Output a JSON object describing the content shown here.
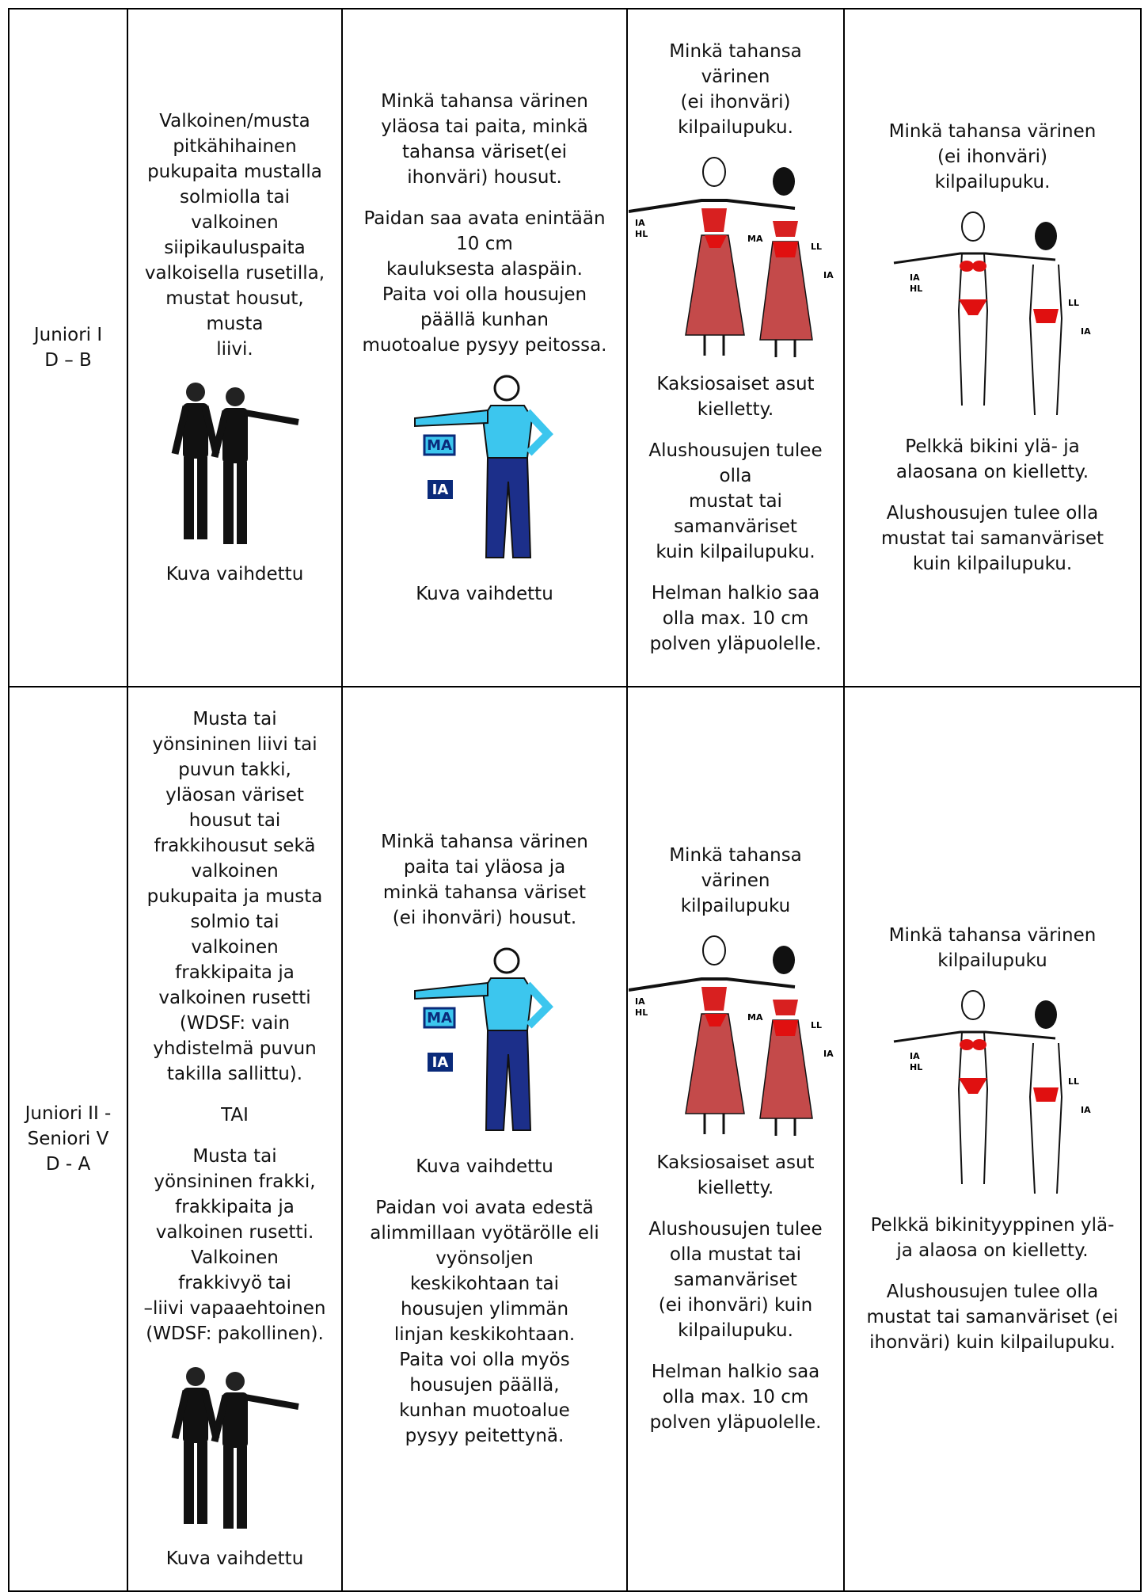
{
  "table": {
    "rows": [
      {
        "cells": [
          {
            "lines": [
              "Juniori I",
              "D – B"
            ]
          },
          {
            "top": [
              [
                "Valkoinen/musta",
                "pitkähihainen",
                "pukupaita mustalla",
                "solmiolla tai",
                "valkoinen",
                "siipikauluspaita",
                "valkoisella rusetilla,",
                "mustat housut,",
                "musta",
                "liivi."
              ]
            ],
            "caption": "Kuva vaihdettu",
            "bottom": []
          },
          {
            "top": [
              [
                "Minkä tahansa värinen",
                "yläosa tai paita, minkä",
                "tahansa väriset(ei",
                "ihonväri) housut."
              ],
              [
                "Paidan saa avata enintään",
                "10 cm",
                "kauluksesta alaspäin.",
                "Paita voi olla housujen",
                "päällä kunhan",
                "muotoalue pysyy peitossa."
              ]
            ],
            "figure_labels": [
              "MA",
              "IA"
            ],
            "caption": "Kuva vaihdettu",
            "bottom": []
          },
          {
            "top": [
              [
                "Minkä tahansa",
                "värinen",
                "(ei ihonväri)",
                "kilpailupuku."
              ]
            ],
            "figure_labels": [
              "IA",
              "HL",
              "MA",
              "LL",
              "IA"
            ],
            "bottom": [
              [
                "Kaksiosaiset asut",
                "kielletty."
              ],
              [
                "Alushousujen tulee",
                "olla",
                "mustat tai",
                "samanväriset",
                "kuin kilpailupuku."
              ],
              [
                "Helman halkio saa",
                "olla max. 10 cm",
                "polven yläpuolelle."
              ]
            ]
          },
          {
            "top": [
              [
                "Minkä tahansa värinen",
                "(ei ihonväri)",
                "kilpailupuku."
              ]
            ],
            "figure_labels": [
              "IA",
              "HL",
              "LL",
              "IA"
            ],
            "bottom": [
              [
                "Pelkkä bikini ylä- ja",
                "alaosana on kielletty."
              ],
              [
                "Alushousujen tulee olla",
                "mustat tai samanväriset",
                "kuin kilpailupuku."
              ]
            ]
          }
        ]
      },
      {
        "cells": [
          {
            "lines": [
              "Juniori II -",
              "Seniori V",
              "D - A"
            ]
          },
          {
            "top": [
              [
                "Musta tai",
                "yönsininen liivi tai",
                "puvun takki,",
                "yläosan väriset",
                "housut tai",
                "frakkihousut sekä",
                "valkoinen",
                "pukupaita ja musta",
                "solmio tai",
                "valkoinen",
                "frakkipaita ja",
                "valkoinen rusetti",
                "(WDSF:  vain",
                "yhdistelmä puvun",
                "takilla sallittu)."
              ],
              [
                "TAI"
              ],
              [
                "Musta tai",
                "yönsininen frakki,",
                "frakkipaita ja",
                "valkoinen rusetti.",
                "Valkoinen",
                "frakkivyö tai",
                "–liivi vapaaehtoinen",
                "(WDSF: pakollinen)."
              ]
            ],
            "caption": "Kuva vaihdettu",
            "bottom": []
          },
          {
            "top": [
              [
                "Minkä tahansa värinen",
                "paita tai yläosa ja",
                "minkä tahansa väriset",
                "(ei ihonväri) housut."
              ]
            ],
            "figure_labels": [
              "MA",
              "IA"
            ],
            "caption": "Kuva vaihdettu",
            "bottom": [
              [
                "Paidan voi avata edestä",
                "alimmillaan vyötärölle eli",
                "vyönsoljen",
                "keskikohtaan tai",
                "housujen ylimmän",
                "linjan keskikohtaan.",
                "Paita voi olla myös",
                "housujen päällä,",
                "kunhan muotoalue",
                "pysyy peitettynä."
              ]
            ]
          },
          {
            "top": [
              [
                "Minkä tahansa",
                "värinen",
                "kilpailupuku"
              ]
            ],
            "figure_labels": [
              "IA",
              "HL",
              "MA",
              "LL",
              "IA"
            ],
            "bottom": [
              [
                "Kaksiosaiset asut",
                "kielletty."
              ],
              [
                "Alushousujen tulee",
                "olla mustat tai",
                "samanväriset",
                "(ei ihonväri) kuin",
                "kilpailupuku."
              ],
              [
                "Helman halkio saa",
                "olla max. 10 cm",
                "polven yläpuolelle."
              ]
            ]
          },
          {
            "top": [
              [
                "Minkä tahansa värinen",
                "kilpailupuku"
              ]
            ],
            "figure_labels": [
              "IA",
              "HL",
              "LL",
              "IA"
            ],
            "bottom": [
              [
                "Pelkkä bikinityyppinen ylä-",
                "ja alaosa on kielletty."
              ],
              [
                "Alushousujen tulee olla",
                "mustat tai samanväriset (ei",
                "ihonväri) kuin kilpailupuku."
              ]
            ]
          }
        ]
      }
    ]
  }
}
